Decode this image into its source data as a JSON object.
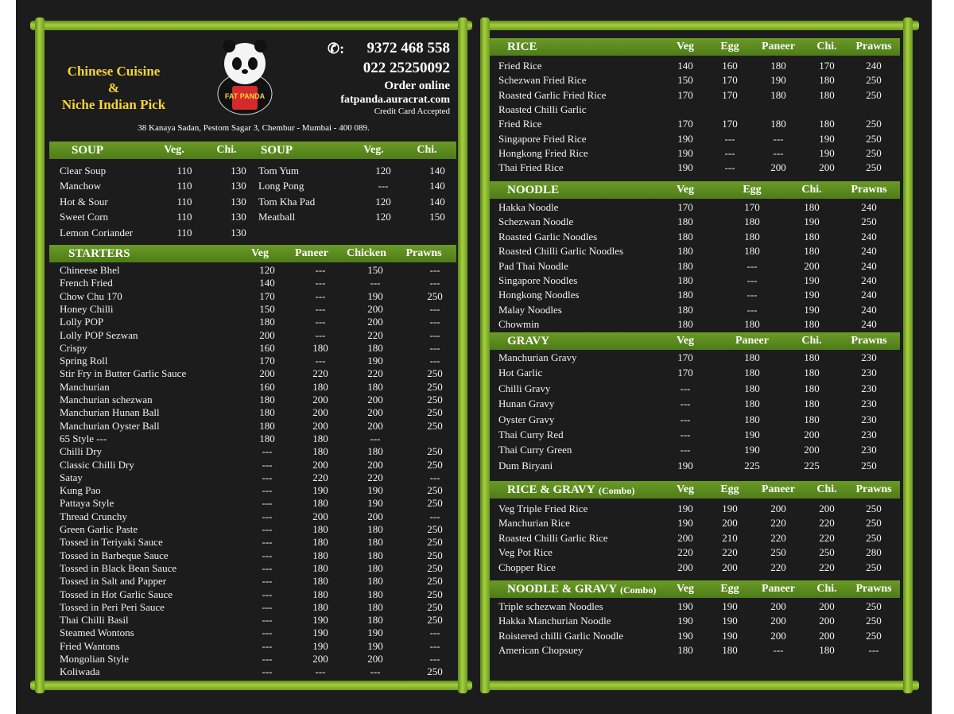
{
  "header": {
    "tagline": [
      "Chinese Cuisine",
      "&",
      "Niche Indian Pick"
    ],
    "logo_text": "FAT PANDA",
    "phone1": "9372 468 558",
    "phone2": "022 25250092",
    "order": "Order online",
    "website": "fatpanda.auracrat.com",
    "payment": "Credit Card Accepted",
    "address": "38 Kanaya Sadan, Pestom Sagar 3, Chembur - Mumbai - 400 089."
  },
  "sections": [
    {
      "title": "SOUP",
      "columns": [
        "Veg.",
        "Chi."
      ],
      "rows": [
        [
          "Clear Soup",
          "110",
          "130"
        ],
        [
          "Manchow",
          "110",
          "130"
        ],
        [
          "Hot & Sour",
          "110",
          "130"
        ],
        [
          "Sweet Corn",
          "110",
          "130"
        ],
        [
          "Lemon Coriander",
          "110",
          "130"
        ]
      ]
    },
    {
      "title": "SOUP",
      "columns": [
        "Veg.",
        "Chi."
      ],
      "rows": [
        [
          "Tom Yum",
          "120",
          "140"
        ],
        [
          "Long Pong",
          "---",
          "140"
        ],
        [
          "Tom Kha Pad",
          "120",
          "140"
        ],
        [
          "Meatball",
          "120",
          "150"
        ]
      ]
    },
    {
      "title": "STARTERS",
      "columns": [
        "Veg",
        "Paneer",
        "Chicken",
        "Prawns"
      ],
      "rows": [
        [
          "Chineese Bhel",
          "120",
          "---",
          "150",
          "---"
        ],
        [
          "French Fried",
          "140",
          "---",
          "---",
          "---"
        ],
        [
          "Chow Chu 170",
          "170",
          "---",
          "190",
          "250"
        ],
        [
          "Honey Chilli",
          "150",
          "---",
          "200",
          "---"
        ],
        [
          "Lolly POP",
          "180",
          "---",
          "200",
          "---"
        ],
        [
          "Lolly POP Sezwan",
          "200",
          "---",
          "220",
          "---"
        ],
        [
          "Crispy",
          "160",
          "180",
          "180",
          "---"
        ],
        [
          "Spring Roll",
          "170",
          "---",
          "190",
          "---"
        ],
        [
          "Stir Fry in Butter Garlic Sauce",
          "200",
          "220",
          "220",
          "250"
        ],
        [
          "Manchurian",
          "160",
          "180",
          "180",
          "250"
        ],
        [
          "Manchurian schezwan",
          "180",
          "200",
          "200",
          "250"
        ],
        [
          "Manchurian Hunan Ball",
          "180",
          "200",
          "200",
          "250"
        ],
        [
          "Manchurian Oyster Ball",
          "180",
          "200",
          "200",
          "250"
        ],
        [
          "65 Style  ---",
          "180",
          "180",
          "---"
        ],
        [
          "Chilli Dry",
          "---",
          "180",
          "180",
          "250"
        ],
        [
          "Classic Chilli Dry",
          "---",
          "200",
          "200",
          "250"
        ],
        [
          "Satay",
          "---",
          "220",
          "220",
          "---"
        ],
        [
          "Kung Pao",
          "---",
          "190",
          "190",
          "250"
        ],
        [
          "Pattaya Style",
          "---",
          "180",
          "190",
          "250"
        ],
        [
          "Thread Crunchy",
          "---",
          "200",
          "200",
          "---"
        ],
        [
          "Green Garlic Paste",
          "---",
          "180",
          "180",
          "250"
        ],
        [
          "Tossed in Teriyaki Sauce",
          "---",
          "180",
          "180",
          "250"
        ],
        [
          "Tossed in Barbeque Sauce",
          "---",
          "180",
          "180",
          "250"
        ],
        [
          "Tossed in Black Bean Sauce",
          "---",
          "180",
          "180",
          "250"
        ],
        [
          "Tossed in Salt and Papper",
          "---",
          "180",
          "180",
          "250"
        ],
        [
          "Tossed in Hot Garlic Sauce",
          "---",
          "180",
          "180",
          "250"
        ],
        [
          "Tossed in Peri Peri Sauce",
          "---",
          "180",
          "180",
          "250"
        ],
        [
          "Thai Chilli Basil",
          "---",
          "190",
          "180",
          "250"
        ],
        [
          "Steamed Wontons",
          "---",
          "190",
          "190",
          "---"
        ],
        [
          "Fried Wantons",
          "---",
          "190",
          "190",
          "---"
        ],
        [
          "Mongolian Style",
          "---",
          "200",
          "200",
          "---"
        ],
        [
          "Koliwada",
          "---",
          "---",
          "---",
          "250"
        ]
      ]
    },
    {
      "title": "RICE",
      "columns": [
        "Veg",
        "Egg",
        "Paneer",
        "Chi.",
        "Prawns"
      ],
      "rows": [
        [
          "Fried Rice",
          "140",
          "160",
          "180",
          "170",
          "240"
        ],
        [
          "Schezwan Fried Rice",
          "150",
          "170",
          "190",
          "180",
          "250"
        ],
        [
          "Roasted Garlic Fried Rice",
          "170",
          "170",
          "180",
          "180",
          "250"
        ],
        [
          "Roasted Chilli Garlic"
        ],
        [
          "Fried Rice",
          "170",
          "170",
          "180",
          "180",
          "250"
        ],
        [
          "Singapore Fried Rice",
          "190",
          "---",
          "---",
          "190",
          "250"
        ],
        [
          "Hongkong Fried Rice",
          "190",
          "---",
          "---",
          "190",
          "250"
        ],
        [
          "Thai Fried Rice",
          "190",
          "---",
          "200",
          "200",
          "250"
        ]
      ]
    },
    {
      "title": "NOODLE",
      "columns": [
        "Veg",
        "Egg",
        "Chi.",
        "Prawns"
      ],
      "rows": [
        [
          "Hakka Noodle",
          "170",
          "170",
          "180",
          "240"
        ],
        [
          "Schezwan Noodle",
          "180",
          "180",
          "190",
          "250"
        ],
        [
          "Roasted Garlic Noodles",
          "180",
          "180",
          "180",
          "240"
        ],
        [
          "Roasted Chilli Garlic Noodles",
          "180",
          "180",
          "180",
          "240"
        ],
        [
          "Pad Thai Noodle",
          "180",
          "---",
          "200",
          "240"
        ],
        [
          "Singapore Noodles",
          "180",
          "---",
          "190",
          "240"
        ],
        [
          "Hongkong Noodles",
          "180",
          "---",
          "190",
          "240"
        ],
        [
          "Malay Noodles",
          "180",
          "---",
          "190",
          "240"
        ],
        [
          "Chowmin",
          "180",
          "180",
          "180",
          "240"
        ]
      ]
    },
    {
      "title": "GRAVY",
      "columns": [
        "Veg",
        "Paneer",
        "Chi.",
        "Prawns"
      ],
      "rows": [
        [
          "Manchurian Gravy",
          "170",
          "180",
          "180",
          "230"
        ],
        [
          "Hot Garlic",
          "170",
          "180",
          "180",
          "230"
        ],
        [
          "Chilli Gravy",
          "---",
          "180",
          "180",
          "230"
        ],
        [
          "Hunan Gravy",
          "---",
          "180",
          "180",
          "230"
        ],
        [
          "Oyster Gravy",
          "---",
          "180",
          "180",
          "230"
        ],
        [
          "Thai Curry Red",
          "---",
          "190",
          "200",
          "230"
        ],
        [
          "Thai Curry Green",
          "---",
          "190",
          "200",
          "230"
        ],
        [
          "Dum Biryani",
          "190",
          "225",
          "225",
          "250"
        ]
      ]
    },
    {
      "title": "RICE & GRAVY",
      "note": "(Combo)",
      "columns": [
        "Veg",
        "Egg",
        "Paneer",
        "Chi.",
        "Prawns"
      ],
      "rows": [
        [
          "Veg Triple Fried Rice",
          "190",
          "190",
          "200",
          "200",
          "250"
        ],
        [
          "Manchurian Rice",
          "190",
          "200",
          "220",
          "220",
          "250"
        ],
        [
          "Roasted Chilli Garlic Rice",
          "200",
          "210",
          "220",
          "220",
          "250"
        ],
        [
          "Veg Pot Rice",
          "220",
          "220",
          "250",
          "250",
          "280"
        ],
        [
          "Chopper Rice",
          "200",
          "200",
          "220",
          "220",
          "250"
        ]
      ]
    },
    {
      "title": "NOODLE & GRAVY",
      "note": "(Combo)",
      "columns": [
        "Veg",
        "Egg",
        "Paneer",
        "Chi.",
        "Prawns"
      ],
      "rows": [
        [
          "Triple schezwan Noodles",
          "190",
          "190",
          "200",
          "200",
          "250"
        ],
        [
          "Hakka Manchurian Noodle",
          "190",
          "190",
          "200",
          "200",
          "250"
        ],
        [
          "Roistered chilli Garlic Noodle",
          "190",
          "190",
          "200",
          "200",
          "250"
        ],
        [
          "American Chopsuey",
          "180",
          "180",
          "---",
          "180",
          "---"
        ]
      ]
    }
  ]
}
